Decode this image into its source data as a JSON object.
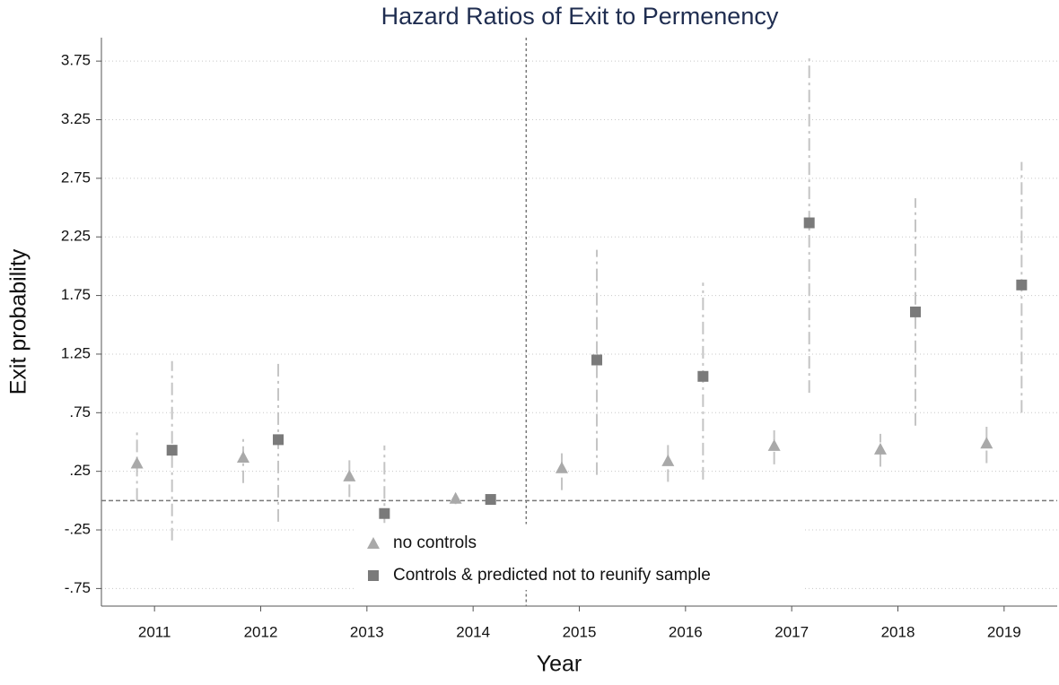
{
  "chart_data": {
    "type": "errorbar",
    "title": "Hazard Ratios of Exit to Permenency",
    "x_label": "Year",
    "y_label": "Exit probability",
    "xlim": [
      2010.5,
      2019.5
    ],
    "xticks": [
      2011,
      2012,
      2013,
      2014,
      2015,
      2016,
      2017,
      2018,
      2019
    ],
    "ylim": [
      -0.9,
      3.95
    ],
    "yticks": [
      {
        "value": -0.75,
        "label": "-.75"
      },
      {
        "value": -0.25,
        "label": "-.25"
      },
      {
        "value": 0.25,
        "label": ".25"
      },
      {
        "value": 0.75,
        "label": ".75"
      },
      1.25,
      1.75,
      2.25,
      2.75,
      3.25,
      3.75
    ],
    "grid": true,
    "xline": 2014.5,
    "yline": 0,
    "legend": "bottom-left",
    "x": [
      2011,
      2012,
      2013,
      2014,
      2015,
      2016,
      2017,
      2018,
      2019
    ],
    "series": [
      {
        "name": "no controls",
        "color": "#a9a9a9",
        "marker": "triangle",
        "values": [
          0.32,
          0.37,
          0.21,
          0.02,
          0.28,
          0.34,
          0.47,
          0.44,
          0.49
        ],
        "lower": [
          0.0,
          0.15,
          0.03,
          -0.03,
          0.09,
          0.16,
          0.31,
          0.29,
          0.32
        ],
        "upper": [
          0.61,
          0.54,
          0.37,
          0.06,
          0.43,
          0.48,
          0.6,
          0.57,
          0.63
        ]
      },
      {
        "name": "Controls & predicted not to reunify sample",
        "color": "#7a7a7a",
        "marker": "square",
        "values": [
          0.43,
          0.52,
          -0.11,
          0.01,
          1.2,
          1.06,
          2.37,
          1.61,
          1.84
        ],
        "lower": [
          -0.34,
          -0.18,
          -0.19,
          -0.03,
          0.22,
          0.18,
          0.92,
          0.64,
          0.75
        ],
        "upper": [
          1.19,
          1.19,
          0.47,
          0.05,
          2.14,
          1.86,
          3.8,
          2.58,
          2.89
        ]
      }
    ]
  }
}
